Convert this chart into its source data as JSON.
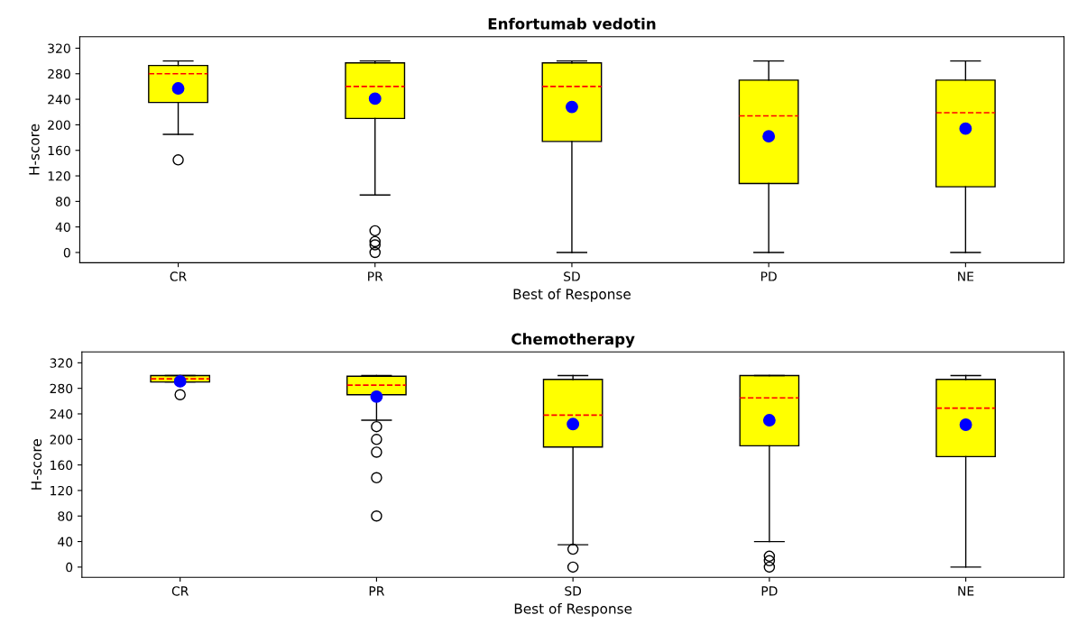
{
  "chart_data": [
    {
      "type": "box",
      "title": "Enfortumab vedotin",
      "xlabel": "Best of Response",
      "ylabel": "H-score",
      "categories": [
        "CR",
        "PR",
        "SD",
        "PD",
        "NE"
      ],
      "color": "#ffff00",
      "ylim": [
        -16,
        338
      ],
      "yticks": [
        0,
        40,
        80,
        120,
        160,
        200,
        240,
        280,
        320
      ],
      "grid": false,
      "boxes": [
        {
          "low": 185,
          "q1": 235,
          "median": 280,
          "q3": 293,
          "high": 300,
          "mean": 257,
          "outliers": [
            145
          ]
        },
        {
          "low": 90,
          "q1": 210,
          "median": 260,
          "q3": 297,
          "high": 300,
          "mean": 241,
          "outliers": [
            34,
            17,
            12,
            0
          ]
        },
        {
          "low": 0,
          "q1": 174,
          "median": 260,
          "q3": 297,
          "high": 300,
          "mean": 228
        },
        {
          "low": 0,
          "q1": 108,
          "median": 214,
          "q3": 270,
          "high": 300,
          "mean": 182
        },
        {
          "low": 0,
          "q1": 103,
          "median": 219,
          "q3": 270,
          "high": 300,
          "mean": 194
        }
      ]
    },
    {
      "type": "box",
      "title": "Chemotherapy",
      "xlabel": "Best of Response",
      "ylabel": "H-score",
      "categories": [
        "CR",
        "PR",
        "SD",
        "PD",
        "NE"
      ],
      "color": "#ffff00",
      "ylim": [
        -16,
        337
      ],
      "yticks": [
        0,
        40,
        80,
        120,
        160,
        200,
        240,
        280,
        320
      ],
      "grid": false,
      "boxes": [
        {
          "low": 290,
          "q1": 290,
          "median": 295,
          "q3": 300,
          "high": 300,
          "mean": 291,
          "outliers": [
            270
          ]
        },
        {
          "low": 230,
          "q1": 270,
          "median": 285,
          "q3": 299,
          "high": 300,
          "mean": 267,
          "outliers": [
            220,
            200,
            180,
            140,
            80
          ]
        },
        {
          "low": 35,
          "q1": 188,
          "median": 238,
          "q3": 294,
          "high": 300,
          "mean": 224,
          "outliers": [
            28,
            0
          ]
        },
        {
          "low": 40,
          "q1": 190,
          "median": 265,
          "q3": 300,
          "high": 300,
          "mean": 230,
          "outliers": [
            17,
            10,
            0
          ]
        },
        {
          "low": 0,
          "q1": 173,
          "median": 249,
          "q3": 294,
          "high": 300,
          "mean": 223
        }
      ]
    }
  ]
}
